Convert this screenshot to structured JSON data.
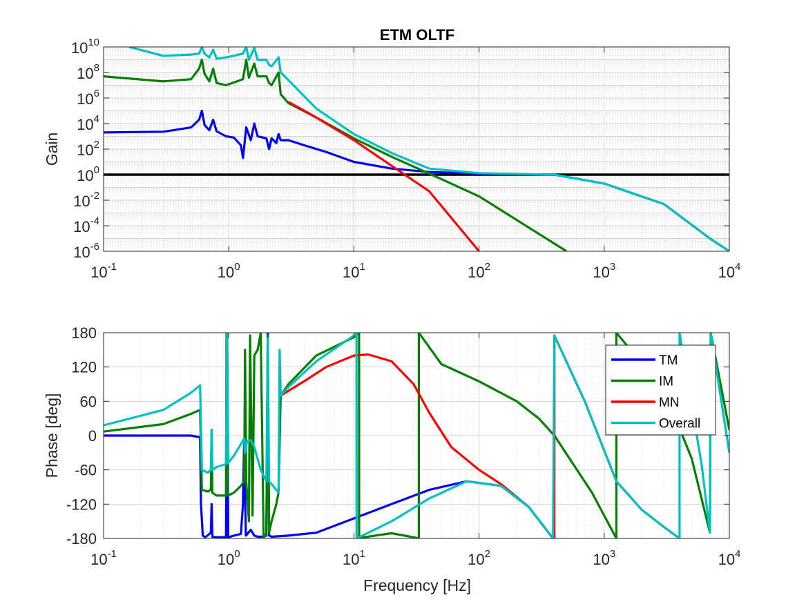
{
  "chart_data": [
    {
      "type": "line",
      "title": "ETM OLTF",
      "xlabel": "",
      "ylabel": "Gain",
      "xscale": "log",
      "yscale": "log",
      "xlim": [
        0.1,
        10000
      ],
      "ylim": [
        1e-06,
        10000000000.0
      ],
      "grid": "on (major and minor)",
      "x_tick_labels": [
        "10^-1",
        "10^0",
        "10^1",
        "10^2",
        "10^3",
        "10^4"
      ],
      "y_tick_labels": [
        "10^-6",
        "10^-4",
        "10^-2",
        "10^0",
        "10^2",
        "10^4",
        "10^6",
        "10^8",
        "10^10"
      ],
      "reference_line": {
        "y": 1,
        "color": "#000000"
      },
      "series": [
        {
          "name": "TM",
          "color": "#0000ff",
          "points": [
            [
              0.1,
              2000
            ],
            [
              0.3,
              2300
            ],
            [
              0.5,
              5000
            ],
            [
              0.58,
              20000
            ],
            [
              0.61,
              100000
            ],
            [
              0.64,
              8000
            ],
            [
              0.7,
              3000
            ],
            [
              0.75,
              20000
            ],
            [
              0.8,
              2500
            ],
            [
              0.95,
              1000
            ],
            [
              1.1,
              800
            ],
            [
              1.25,
              200
            ],
            [
              1.3,
              20
            ],
            [
              1.38,
              5000
            ],
            [
              1.5,
              500
            ],
            [
              1.6,
              10000
            ],
            [
              1.7,
              1000
            ],
            [
              2.0,
              700
            ],
            [
              2.1,
              100
            ],
            [
              2.2,
              700
            ],
            [
              2.4,
              300
            ],
            [
              2.5,
              1500
            ],
            [
              2.6,
              500
            ],
            [
              3,
              500
            ],
            [
              4,
              200
            ],
            [
              6,
              60
            ],
            [
              10,
              10
            ],
            [
              20,
              3
            ],
            [
              40,
              1.6
            ],
            [
              100,
              1.2
            ],
            [
              400,
              1
            ],
            [
              1000,
              0.2
            ],
            [
              3000,
              0.005
            ],
            [
              7000,
              1e-05
            ],
            [
              10000,
              1e-06
            ]
          ]
        },
        {
          "name": "IM",
          "color": "#007f00",
          "points": [
            [
              0.1,
              50000000.0
            ],
            [
              0.3,
              20000000.0
            ],
            [
              0.5,
              30000000.0
            ],
            [
              0.58,
              200000000.0
            ],
            [
              0.61,
              1000000000.0
            ],
            [
              0.64,
              80000000.0
            ],
            [
              0.7,
              20000000.0
            ],
            [
              0.75,
              200000000.0
            ],
            [
              0.8,
              15000000.0
            ],
            [
              0.95,
              10000000.0
            ],
            [
              1.3,
              30000000.0
            ],
            [
              1.38,
              1000000000.0
            ],
            [
              1.45,
              40000000.0
            ],
            [
              1.6,
              500000000.0
            ],
            [
              1.7,
              50000000.0
            ],
            [
              2.0,
              50000000.0
            ],
            [
              2.1,
              15000000.0
            ],
            [
              2.2,
              10000000.0
            ],
            [
              2.5,
              100000000.0
            ],
            [
              2.6,
              2000000.0
            ],
            [
              3,
              400000.0
            ],
            [
              5,
              30000.0
            ],
            [
              10,
              700
            ],
            [
              20,
              25
            ],
            [
              40,
              1.2
            ],
            [
              100,
              0.02
            ],
            [
              500,
              1e-06
            ]
          ]
        },
        {
          "name": "MN",
          "color": "#ff0000",
          "points": [
            [
              3,
              500000.0
            ],
            [
              5,
              30000.0
            ],
            [
              10,
              500
            ],
            [
              20,
              5
            ],
            [
              40,
              0.05
            ],
            [
              100,
              1e-06
            ]
          ]
        },
        {
          "name": "Overall",
          "color": "#00bfbf",
          "points": [
            [
              0.16,
              10000000000.0
            ],
            [
              0.3,
              2000000000.0
            ],
            [
              0.5,
              2500000000.0
            ],
            [
              0.58,
              3000000000.0
            ],
            [
              0.61,
              10000000000.0
            ],
            [
              0.64,
              3000000000.0
            ],
            [
              0.7,
              1500000000.0
            ],
            [
              0.75,
              6000000000.0
            ],
            [
              0.8,
              1200000000.0
            ],
            [
              0.95,
              1500000000.0
            ],
            [
              1.3,
              3000000000.0
            ],
            [
              1.38,
              10000000000.0
            ],
            [
              1.45,
              1000000000.0
            ],
            [
              1.6,
              8000000000.0
            ],
            [
              1.7,
              1000000000.0
            ],
            [
              2.0,
              1000000000.0
            ],
            [
              2.1,
              400000000.0
            ],
            [
              2.2,
              300000000.0
            ],
            [
              2.5,
              1500000000.0
            ],
            [
              2.6,
              100000000.0
            ],
            [
              3,
              25000000.0
            ],
            [
              5,
              150000.0
            ],
            [
              10,
              1500
            ],
            [
              20,
              50
            ],
            [
              40,
              3
            ],
            [
              100,
              1.3
            ],
            [
              400,
              1
            ],
            [
              1000,
              0.2
            ],
            [
              3000,
              0.005
            ],
            [
              7000,
              1e-05
            ],
            [
              10000,
              1e-06
            ]
          ]
        }
      ]
    },
    {
      "type": "line",
      "title": "",
      "xlabel": "Frequency [Hz]",
      "ylabel": "Phase [deg]",
      "xscale": "log",
      "xlim": [
        0.1,
        10000
      ],
      "ylim": [
        -180,
        180
      ],
      "grid": "on (major and minor)",
      "x_tick_labels": [
        "10^-1",
        "10^0",
        "10^1",
        "10^2",
        "10^3",
        "10^4"
      ],
      "y_ticks": [
        -180,
        -120,
        -60,
        0,
        60,
        120,
        180
      ],
      "legend_position": "top-right",
      "series": [
        {
          "name": "TM",
          "color": "#0000ff",
          "points": [
            [
              0.1,
              0
            ],
            [
              0.5,
              0
            ],
            [
              0.59,
              -3
            ],
            [
              0.6,
              -120
            ],
            [
              0.62,
              -175
            ],
            [
              0.65,
              -178
            ],
            [
              0.72,
              -170
            ],
            [
              0.73,
              -120
            ],
            [
              0.74,
              -177
            ],
            [
              0.8,
              -178
            ],
            [
              0.9,
              -178
            ],
            [
              0.95,
              -178
            ],
            [
              0.97,
              180
            ],
            [
              0.99,
              -178
            ],
            [
              1.1,
              -175
            ],
            [
              1.25,
              -172
            ],
            [
              1.3,
              -120
            ],
            [
              1.33,
              -5
            ],
            [
              1.35,
              -100
            ],
            [
              1.37,
              -175
            ],
            [
              1.5,
              -165
            ],
            [
              1.6,
              -175
            ],
            [
              1.7,
              -177
            ],
            [
              1.9,
              -177
            ],
            [
              2.0,
              -175
            ],
            [
              2.05,
              180
            ],
            [
              2.1,
              -175
            ],
            [
              2.2,
              -177
            ],
            [
              3,
              -175
            ],
            [
              5,
              -170
            ],
            [
              10,
              -145
            ],
            [
              20,
              -120
            ],
            [
              40,
              -95
            ],
            [
              80,
              -80
            ],
            [
              150,
              -88
            ],
            [
              250,
              -125
            ],
            [
              390,
              -180
            ]
          ]
        },
        {
          "name": "IM",
          "color": "#007f00",
          "points": [
            [
              0.1,
              7
            ],
            [
              0.3,
              20
            ],
            [
              0.5,
              38
            ],
            [
              0.59,
              45
            ],
            [
              0.61,
              -95
            ],
            [
              0.68,
              -98
            ],
            [
              0.72,
              -95
            ],
            [
              0.73,
              10
            ],
            [
              0.74,
              -100
            ],
            [
              0.8,
              -105
            ],
            [
              0.95,
              -105
            ],
            [
              0.96,
              180
            ],
            [
              0.98,
              -105
            ],
            [
              1.1,
              -100
            ],
            [
              1.25,
              -88
            ],
            [
              1.33,
              -80
            ],
            [
              1.35,
              150
            ],
            [
              1.38,
              -80
            ],
            [
              1.45,
              -150
            ],
            [
              1.48,
              175
            ],
            [
              1.55,
              -140
            ],
            [
              1.6,
              140
            ],
            [
              1.7,
              150
            ],
            [
              1.8,
              180
            ],
            [
              1.9,
              -180
            ],
            [
              2.0,
              -170
            ],
            [
              2.05,
              175
            ],
            [
              2.1,
              -170
            ],
            [
              2.2,
              -150
            ],
            [
              2.4,
              -120
            ],
            [
              2.5,
              -100
            ],
            [
              2.6,
              70
            ],
            [
              3,
              90
            ],
            [
              5,
              140
            ],
            [
              10,
              172
            ],
            [
              11,
              180
            ],
            [
              11.01,
              -180
            ],
            [
              12,
              -178
            ],
            [
              20,
              -171
            ],
            [
              30,
              -178
            ],
            [
              33,
              -180
            ],
            [
              33.01,
              180
            ],
            [
              50,
              125
            ],
            [
              100,
              95
            ],
            [
              200,
              60
            ],
            [
              300,
              30
            ],
            [
              400,
              0
            ],
            [
              800,
              -100
            ],
            [
              1250,
              -180
            ],
            [
              1250.01,
              180
            ],
            [
              3000,
              80
            ],
            [
              5000,
              -40
            ],
            [
              7000,
              -170
            ],
            [
              7100,
              180
            ],
            [
              10000,
              10
            ]
          ]
        },
        {
          "name": "MN",
          "color": "#ff0000",
          "points": [
            [
              2.6,
              70
            ],
            [
              4,
              95
            ],
            [
              6,
              120
            ],
            [
              10,
              140
            ],
            [
              13,
              142
            ],
            [
              20,
              130
            ],
            [
              30,
              90
            ],
            [
              40,
              40
            ],
            [
              60,
              -20
            ],
            [
              100,
              -60
            ],
            [
              150,
              -85
            ],
            [
              250,
              -125
            ],
            [
              390,
              -180
            ],
            [
              400,
              -180
            ],
            [
              400.01,
              175
            ],
            [
              700,
              60
            ],
            [
              1250,
              -80
            ],
            [
              2000,
              -130
            ],
            [
              3000,
              -160
            ],
            [
              4000,
              -180
            ]
          ]
        },
        {
          "name": "Overall",
          "color": "#00bfbf",
          "points": [
            [
              0.1,
              18
            ],
            [
              0.3,
              45
            ],
            [
              0.5,
              75
            ],
            [
              0.59,
              88
            ],
            [
              0.61,
              -60
            ],
            [
              0.68,
              -65
            ],
            [
              0.72,
              -60
            ],
            [
              0.73,
              10
            ],
            [
              0.74,
              -60
            ],
            [
              0.8,
              -55
            ],
            [
              0.95,
              -50
            ],
            [
              0.97,
              180
            ],
            [
              0.99,
              -48
            ],
            [
              1.1,
              -35
            ],
            [
              1.25,
              -15
            ],
            [
              1.33,
              -5
            ],
            [
              1.35,
              -30
            ],
            [
              1.4,
              -10
            ],
            [
              1.5,
              -8
            ],
            [
              1.6,
              -20
            ],
            [
              1.8,
              -60
            ],
            [
              2.0,
              -80
            ],
            [
              2.05,
              170
            ],
            [
              2.1,
              -80
            ],
            [
              2.3,
              -90
            ],
            [
              2.5,
              -100
            ],
            [
              2.55,
              150
            ],
            [
              2.6,
              70
            ],
            [
              3,
              85
            ],
            [
              5,
              130
            ],
            [
              10,
              175
            ],
            [
              10.5,
              180
            ],
            [
              10.51,
              -180
            ],
            [
              20,
              -150
            ],
            [
              40,
              -110
            ],
            [
              80,
              -80
            ],
            [
              150,
              -88
            ],
            [
              250,
              -125
            ],
            [
              390,
              -180
            ],
            [
              400.01,
              175
            ],
            [
              700,
              60
            ],
            [
              1250,
              -80
            ],
            [
              2000,
              -130
            ],
            [
              3000,
              -160
            ],
            [
              4000,
              -180
            ],
            [
              4000.01,
              180
            ],
            [
              6000,
              -50
            ],
            [
              7000,
              -170
            ],
            [
              7100,
              180
            ],
            [
              10000,
              -30
            ]
          ]
        }
      ]
    }
  ]
}
